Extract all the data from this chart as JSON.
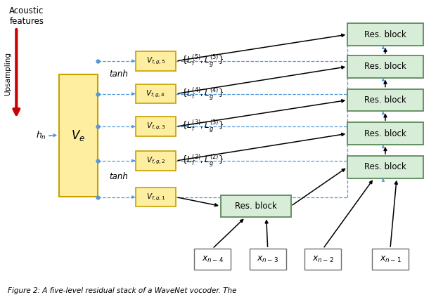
{
  "fig_width": 6.3,
  "fig_height": 4.3,
  "bg_color": "#ffffff",
  "caption": "Figure 2: A five-level residual stack of a WaveNet vocoder. The",
  "acoustic_label": "Acoustic\nfeatures",
  "upsampling_label": "Upsampling",
  "hn_label": "$h_n$",
  "Ve_label": "$V_e$",
  "tanh_upper": "tanh",
  "tanh_lower": "tanh",
  "vfg_labels": [
    "$V_{f,g,5}$",
    "$V_{f,g,4}$",
    "$V_{f,g,3}$",
    "$V_{f,g,2}$",
    "$V_{f,g,1}$"
  ],
  "L_labels": [
    "$\\{L_f^{(5)},L_g^{(5)}\\}$",
    "$\\{L_f^{(4)},L_g^{(4)}\\}$",
    "$\\{L_f^{(3)},L_g^{(3)}\\}$",
    "$\\{L_f^{(2)},L_g^{(2)}\\}$"
  ],
  "xn_labels": [
    "$x_{n-4}$",
    "$x_{n-3}$",
    "$x_{n-2}$",
    "$x_{n-1}$"
  ],
  "res_block_label": "Res. block",
  "box_yellow_face": "#FDEEA0",
  "box_yellow_edge": "#C8A000",
  "box_green_face": "#D8EDD8",
  "box_green_edge": "#5A8A5A",
  "box_gray_face": "#FFFFFF",
  "box_gray_edge": "#707070",
  "arrow_black": "#000000",
  "arrow_blue_dashed": "#5599DD",
  "red_arrow": "#CC0000"
}
